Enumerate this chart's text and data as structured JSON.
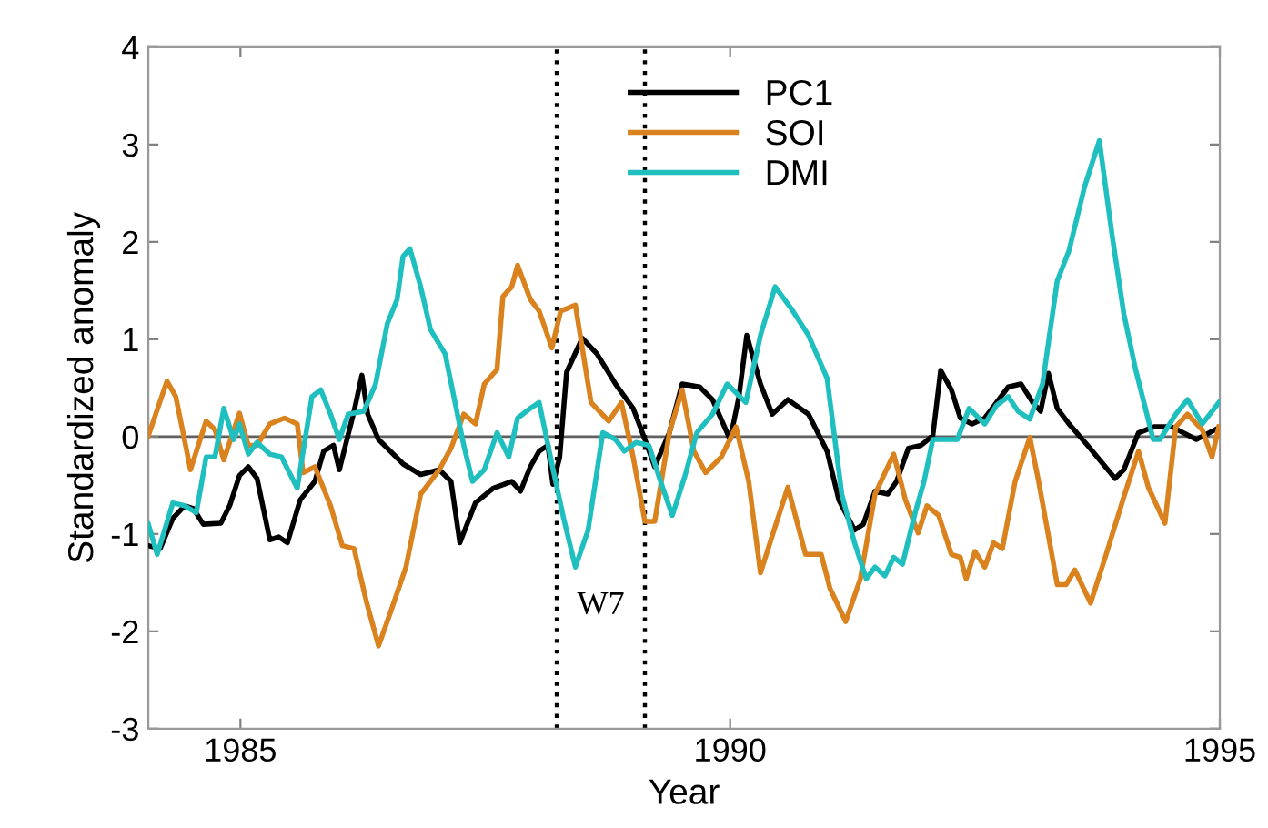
{
  "chart_data": {
    "type": "line",
    "xlabel": "Year",
    "ylabel": "Standardized anomaly",
    "xlim": [
      1984.06,
      1995
    ],
    "ylim": [
      -3,
      4
    ],
    "xticks": [
      1985,
      1990,
      1995
    ],
    "yticks": [
      -3,
      -2,
      -1,
      0,
      1,
      2,
      3,
      4
    ],
    "grid": false,
    "legend": "top right",
    "marker": "none",
    "line_style": "solid",
    "ref_lines": [
      {
        "axis": "y",
        "value": 0,
        "color": "#606060",
        "line_style": "solid"
      },
      {
        "axis": "x",
        "value": 1988.23,
        "color": "#000000",
        "line_style": "dotted"
      },
      {
        "axis": "x",
        "value": 1989.13,
        "color": "#000000",
        "line_style": "dotted"
      }
    ],
    "annotations": [
      "W7"
    ],
    "series": [
      {
        "name": "PC1",
        "color": "#000000",
        "x": [
          1984.06,
          1984.18,
          1984.31,
          1984.43,
          1984.52,
          1984.62,
          1984.8,
          1984.89,
          1984.99,
          1985.08,
          1985.17,
          1985.3,
          1985.39,
          1985.48,
          1985.61,
          1985.76,
          1985.85,
          1985.95,
          1986.01,
          1986.16,
          1986.24,
          1986.3,
          1986.41,
          1986.66,
          1986.84,
          1987.03,
          1987.15,
          1987.24,
          1987.4,
          1987.58,
          1987.77,
          1987.86,
          1987.96,
          1988.05,
          1988.14,
          1988.19,
          1988.26,
          1988.33,
          1988.49,
          1988.64,
          1988.83,
          1989.01,
          1989.13,
          1989.23,
          1989.38,
          1989.51,
          1989.69,
          1989.82,
          1990.0,
          1990.09,
          1990.17,
          1990.31,
          1990.43,
          1990.59,
          1990.8,
          1990.99,
          1991.11,
          1991.27,
          1991.36,
          1991.48,
          1991.61,
          1991.7,
          1991.82,
          1991.95,
          1992.07,
          1992.15,
          1992.26,
          1992.35,
          1992.47,
          1992.6,
          1992.72,
          1992.84,
          1992.97,
          1993.09,
          1993.17,
          1993.25,
          1993.34,
          1993.46,
          1993.65,
          1993.93,
          1994.02,
          1994.17,
          1994.33,
          1994.51,
          1994.76,
          1994.99
        ],
        "values": [
          -1.12,
          -1.15,
          -0.84,
          -0.71,
          -0.74,
          -0.9,
          -0.89,
          -0.71,
          -0.4,
          -0.31,
          -0.43,
          -1.06,
          -1.03,
          -1.09,
          -0.65,
          -0.46,
          -0.15,
          -0.09,
          -0.34,
          0.26,
          0.63,
          0.23,
          -0.03,
          -0.28,
          -0.39,
          -0.34,
          -0.46,
          -1.09,
          -0.68,
          -0.53,
          -0.46,
          -0.56,
          -0.31,
          -0.15,
          -0.09,
          -0.49,
          -0.21,
          0.66,
          1.01,
          0.85,
          0.54,
          0.29,
          -0.03,
          -0.31,
          0.04,
          0.54,
          0.51,
          0.38,
          -0.03,
          0.41,
          1.04,
          0.54,
          0.23,
          0.38,
          0.23,
          -0.15,
          -0.65,
          -0.96,
          -0.9,
          -0.56,
          -0.59,
          -0.46,
          -0.12,
          -0.09,
          0.01,
          0.68,
          0.48,
          0.19,
          0.13,
          0.19,
          0.35,
          0.51,
          0.54,
          0.35,
          0.26,
          0.65,
          0.29,
          0.13,
          -0.09,
          -0.43,
          -0.34,
          0.04,
          0.1,
          0.1,
          -0.03,
          0.09
        ]
      },
      {
        "name": "SOI",
        "color": "#d9821e",
        "x": [
          1984.06,
          1984.25,
          1984.34,
          1984.49,
          1984.65,
          1984.74,
          1984.83,
          1984.99,
          1985.08,
          1985.17,
          1985.3,
          1985.45,
          1985.58,
          1985.64,
          1985.76,
          1985.92,
          1986.04,
          1986.16,
          1986.29,
          1986.41,
          1986.53,
          1986.69,
          1986.84,
          1987.03,
          1987.15,
          1987.28,
          1987.4,
          1987.49,
          1987.62,
          1987.68,
          1987.77,
          1987.83,
          1987.96,
          1988.05,
          1988.18,
          1988.27,
          1988.42,
          1988.58,
          1988.76,
          1988.89,
          1989.01,
          1989.13,
          1989.23,
          1989.38,
          1989.51,
          1989.63,
          1989.75,
          1989.91,
          1990.06,
          1990.19,
          1990.31,
          1990.43,
          1990.59,
          1990.77,
          1990.93,
          1991.02,
          1991.18,
          1991.33,
          1991.48,
          1991.67,
          1991.79,
          1991.92,
          1992.01,
          1992.13,
          1992.26,
          1992.35,
          1992.41,
          1992.5,
          1992.6,
          1992.69,
          1992.78,
          1992.91,
          1993.06,
          1993.15,
          1993.34,
          1993.43,
          1993.52,
          1993.68,
          1993.83,
          1994.02,
          1994.17,
          1994.27,
          1994.44,
          1994.55,
          1994.67,
          1994.82,
          1994.92,
          1994.99
        ],
        "values": [
          0.01,
          0.57,
          0.41,
          -0.34,
          0.16,
          0.07,
          -0.24,
          0.24,
          -0.09,
          -0.09,
          0.13,
          0.19,
          0.13,
          -0.37,
          -0.31,
          -0.71,
          -1.12,
          -1.15,
          -1.71,
          -2.15,
          -1.81,
          -1.34,
          -0.59,
          -0.34,
          -0.12,
          0.23,
          0.13,
          0.54,
          0.69,
          1.44,
          1.54,
          1.76,
          1.41,
          1.29,
          0.91,
          1.29,
          1.35,
          0.35,
          0.16,
          0.35,
          -0.21,
          -0.87,
          -0.87,
          0.04,
          0.48,
          -0.15,
          -0.37,
          -0.21,
          0.1,
          -0.46,
          -1.4,
          -1.02,
          -0.52,
          -1.21,
          -1.21,
          -1.56,
          -1.9,
          -1.46,
          -0.59,
          -0.18,
          -0.65,
          -0.99,
          -0.71,
          -0.81,
          -1.21,
          -1.24,
          -1.46,
          -1.18,
          -1.34,
          -1.09,
          -1.15,
          -0.46,
          -0.01,
          -0.46,
          -1.52,
          -1.52,
          -1.37,
          -1.71,
          -1.24,
          -0.62,
          -0.15,
          -0.52,
          -0.89,
          0.1,
          0.23,
          0.07,
          -0.21,
          0.1
        ]
      },
      {
        "name": "DMI",
        "color": "#1fbfbf",
        "x": [
          1984.06,
          1984.15,
          1984.31,
          1984.43,
          1984.55,
          1984.65,
          1984.74,
          1984.83,
          1984.93,
          1984.99,
          1985.08,
          1985.17,
          1985.3,
          1985.42,
          1985.58,
          1985.73,
          1985.82,
          1985.92,
          1986.01,
          1986.1,
          1986.26,
          1986.38,
          1986.5,
          1986.6,
          1986.66,
          1986.73,
          1986.84,
          1986.94,
          1987.09,
          1987.28,
          1987.37,
          1987.49,
          1987.62,
          1987.74,
          1987.83,
          1987.96,
          1988.05,
          1988.18,
          1988.3,
          1988.42,
          1988.55,
          1988.7,
          1988.83,
          1988.92,
          1989.04,
          1989.17,
          1989.29,
          1989.41,
          1989.54,
          1989.66,
          1989.82,
          1989.97,
          1990.16,
          1990.31,
          1990.46,
          1990.62,
          1990.8,
          1990.99,
          1991.14,
          1991.27,
          1991.39,
          1991.48,
          1991.58,
          1991.67,
          1991.76,
          1991.89,
          1991.98,
          1992.07,
          1992.32,
          1992.44,
          1992.6,
          1992.72,
          1992.84,
          1992.94,
          1993.06,
          1993.19,
          1993.34,
          1993.46,
          1993.62,
          1993.77,
          1993.9,
          1994.02,
          1994.14,
          1994.32,
          1994.39,
          1994.55,
          1994.67,
          1994.82,
          1994.99
        ],
        "values": [
          -0.9,
          -1.21,
          -0.68,
          -0.71,
          -0.78,
          -0.21,
          -0.21,
          0.29,
          -0.03,
          0.13,
          -0.18,
          -0.06,
          -0.18,
          -0.21,
          -0.53,
          0.41,
          0.48,
          0.23,
          -0.03,
          0.23,
          0.26,
          0.54,
          1.16,
          1.41,
          1.85,
          1.93,
          1.54,
          1.1,
          0.85,
          -0.09,
          -0.46,
          -0.34,
          0.04,
          -0.21,
          0.19,
          0.29,
          0.35,
          -0.28,
          -0.84,
          -1.34,
          -0.96,
          0.04,
          -0.03,
          -0.15,
          -0.06,
          -0.09,
          -0.46,
          -0.81,
          -0.4,
          0.04,
          0.23,
          0.54,
          0.35,
          1.04,
          1.54,
          1.32,
          1.04,
          0.6,
          -0.59,
          -1.09,
          -1.46,
          -1.34,
          -1.43,
          -1.24,
          -1.31,
          -0.78,
          -0.46,
          -0.03,
          -0.03,
          0.29,
          0.13,
          0.32,
          0.41,
          0.26,
          0.18,
          0.54,
          1.6,
          1.91,
          2.57,
          3.04,
          2.07,
          1.26,
          0.69,
          -0.03,
          -0.03,
          0.23,
          0.38,
          0.13,
          0.35
        ]
      }
    ]
  }
}
